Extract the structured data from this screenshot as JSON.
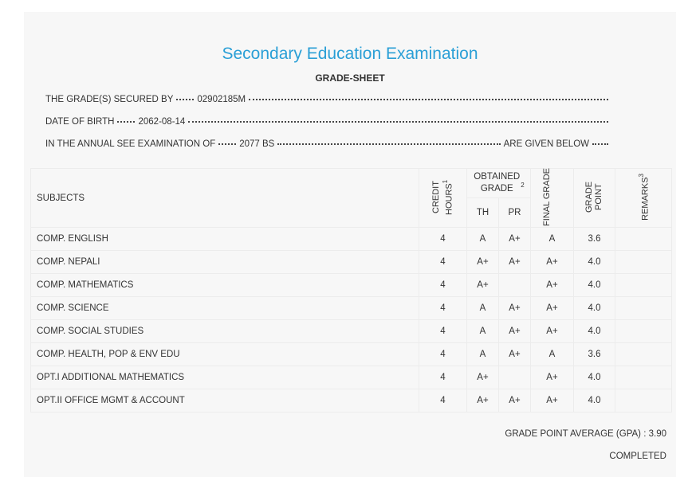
{
  "header": {
    "title": "Secondary Education Examination",
    "subtitle": "GRADE-SHEET"
  },
  "info": [
    {
      "label": "THE GRADE(S) SECURED BY",
      "value": "02902185M"
    },
    {
      "label": "DATE OF BIRTH",
      "value": "2062-08-14"
    },
    {
      "label": "IN THE ANNUAL SEE EXAMINATION OF",
      "value": "2077 BS",
      "suffix": "ARE GIVEN BELOW"
    }
  ],
  "table": {
    "headers": {
      "subjects": "SUBJECTS",
      "credit_hours": {
        "text": "CREDIT HOURS",
        "note": "1"
      },
      "obtained_grade": {
        "text": "OBTAINED GRADE",
        "note": "2"
      },
      "th": "TH",
      "pr": "PR",
      "final_grade": "FINAL GRADE",
      "grade_point": "GRADE POINT",
      "remarks": {
        "text": "REMARKS",
        "note": "3"
      }
    },
    "rows": [
      [
        "COMP. ENGLISH",
        "4",
        "A",
        "A+",
        "A",
        "3.6"
      ],
      [
        "COMP. NEPALI",
        "4",
        "A+",
        "A+",
        "A+",
        "4.0"
      ],
      [
        "COMP. MATHEMATICS",
        "4",
        "A+",
        null,
        "A+",
        "4.0"
      ],
      [
        "COMP. SCIENCE",
        "4",
        "A",
        "A+",
        "A+",
        "4.0"
      ],
      [
        "COMP. SOCIAL STUDIES",
        "4",
        "A",
        "A+",
        "A+",
        "4.0"
      ],
      [
        "COMP. HEALTH, POP & ENV EDU",
        "4",
        "A",
        "A+",
        "A",
        "3.6"
      ],
      [
        "OPT.I ADDITIONAL MATHEMATICS",
        "4",
        "A+",
        null,
        "A+",
        "4.0"
      ],
      [
        "OPT.II OFFICE MGMT & ACCOUNT",
        "4",
        "A+",
        "A+",
        "A+",
        "4.0"
      ]
    ]
  },
  "footer": {
    "gpa_label": "GRADE POINT AVERAGE (GPA) :",
    "gpa": "3.90",
    "status": "COMPLETED"
  }
}
